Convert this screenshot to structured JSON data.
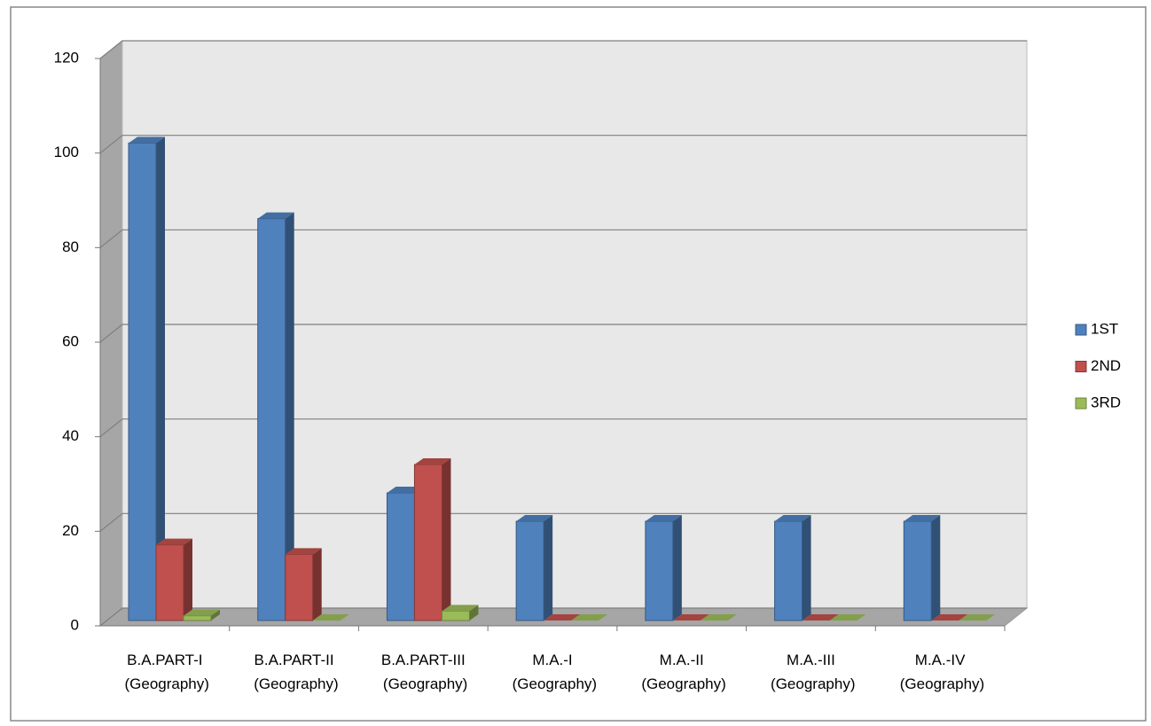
{
  "chart_data": {
    "type": "bar3d",
    "categories": [
      "B.A.PART-I (Geography)",
      "B.A.PART-II (Geography)",
      "B.A.PART-III (Geography)",
      "M.A.-I (Geography)",
      "M.A.-II (Geography)",
      "M.A.-III (Geography)",
      "M.A.-IV (Geography)"
    ],
    "series": [
      {
        "name": "1ST",
        "color": "#4f81bd",
        "values": [
          101,
          85,
          27,
          21,
          21,
          21,
          21
        ]
      },
      {
        "name": "2ND",
        "color": "#c0504d",
        "values": [
          16,
          14,
          33,
          0,
          0,
          0,
          0
        ]
      },
      {
        "name": "3RD",
        "color": "#9bbb59",
        "values": [
          1,
          0,
          2,
          0,
          0,
          0,
          0
        ]
      }
    ],
    "ylim": [
      0,
      120
    ],
    "yticks": [
      0,
      20,
      40,
      60,
      80,
      100,
      120
    ],
    "grid": true,
    "legend": "right"
  }
}
